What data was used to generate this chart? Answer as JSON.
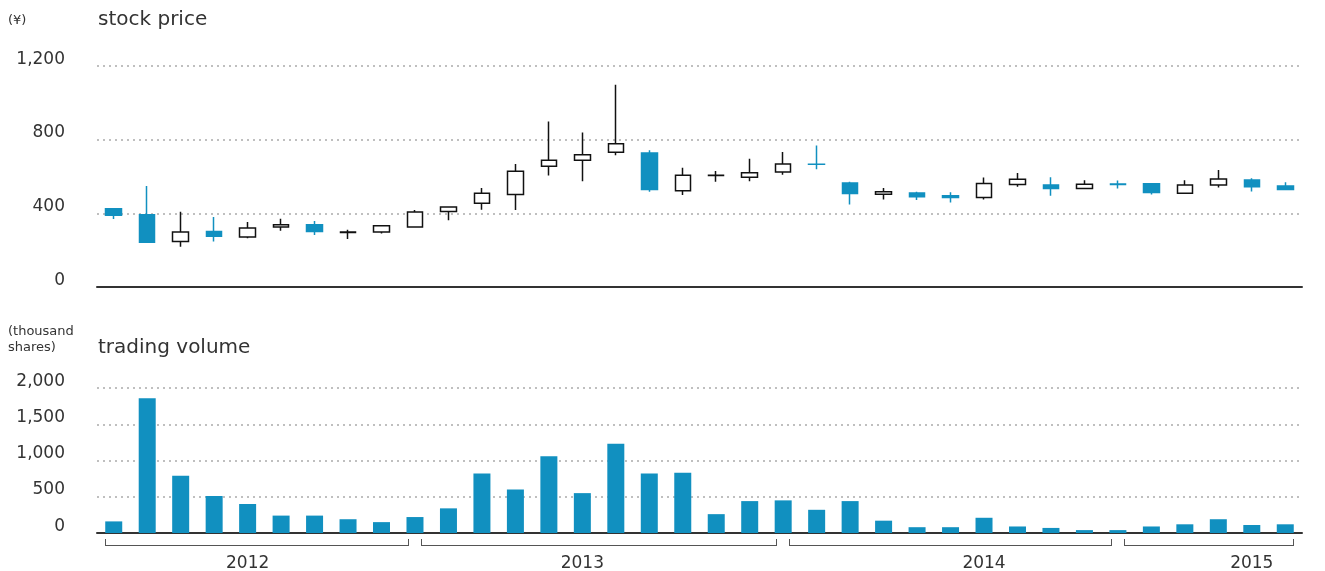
{
  "chart_data": [
    {
      "type": "candlestick",
      "title": "stock price",
      "ylabel": "(¥)",
      "categories": [
        null,
        null,
        null,
        null,
        "2012",
        null,
        null,
        null,
        null,
        null,
        null,
        null,
        null,
        null,
        "2013",
        null,
        null,
        null,
        null,
        null,
        null,
        null,
        null,
        null,
        null,
        null,
        "2014",
        null,
        null,
        null,
        null,
        null,
        null,
        null,
        "2015",
        null
      ],
      "ohlc": [
        [
          425,
          425,
          369,
          389
        ],
        [
          392,
          549,
          239,
          243
        ],
        [
          247,
          409,
          218,
          299
        ],
        [
          301,
          380,
          247,
          275
        ],
        [
          272,
          353,
          265,
          320
        ],
        [
          326,
          371,
          306,
          338
        ],
        [
          338,
          358,
          283,
          302
        ],
        [
          296,
          311,
          261,
          298
        ],
        [
          299,
          333,
          290,
          333
        ],
        [
          326,
          418,
          326,
          407
        ],
        [
          410,
          434,
          362,
          434
        ],
        [
          455,
          538,
          419,
          509
        ],
        [
          502,
          668,
          418,
          628
        ],
        [
          655,
          898,
          605,
          688
        ],
        [
          688,
          839,
          574,
          718
        ],
        [
          731,
          1098,
          715,
          778
        ],
        [
          727,
          743,
          517,
          529
        ],
        [
          522,
          648,
          500,
          607
        ],
        [
          605,
          630,
          571,
          607
        ],
        [
          596,
          697,
          574,
          621
        ],
        [
          625,
          733,
          610,
          668
        ],
        [
          667,
          769,
          639,
          666
        ],
        [
          565,
          571,
          448,
          508
        ],
        [
          504,
          538,
          475,
          517
        ],
        [
          511,
          517,
          473,
          490
        ],
        [
          495,
          515,
          459,
          486
        ],
        [
          486,
          594,
          475,
          562
        ],
        [
          556,
          619,
          544,
          585
        ],
        [
          554,
          596,
          495,
          535
        ],
        [
          535,
          580,
          535,
          558
        ],
        [
          559,
          578,
          535,
          557
        ],
        [
          560,
          560,
          502,
          513
        ],
        [
          509,
          580,
          509,
          554
        ],
        [
          554,
          635,
          540,
          587
        ],
        [
          581,
          590,
          518,
          545
        ],
        [
          549,
          569,
          529,
          529
        ]
      ],
      "ylim": [
        0,
        1200
      ],
      "yticks": [
        0,
        400,
        800,
        {
          "value": 1200,
          "label": "1,200"
        }
      ],
      "grid": "y",
      "tick_labels": "y"
    },
    {
      "type": "bar",
      "title": "trading volume",
      "ylabel": "(thousand shares)",
      "color": "#1190c0",
      "categories": [
        null,
        null,
        null,
        null,
        "2012",
        null,
        null,
        null,
        null,
        null,
        null,
        null,
        null,
        null,
        "2013",
        null,
        null,
        null,
        null,
        null,
        null,
        null,
        null,
        null,
        null,
        null,
        "2014",
        null,
        null,
        null,
        null,
        null,
        null,
        null,
        "2015",
        null
      ],
      "values": [
        160,
        1860,
        790,
        510,
        400,
        240,
        240,
        190,
        150,
        220,
        340,
        820,
        600,
        1060,
        550,
        1230,
        820,
        830,
        260,
        440,
        450,
        320,
        440,
        170,
        80,
        80,
        210,
        90,
        70,
        40,
        40,
        90,
        120,
        190,
        110,
        120
      ],
      "ylim": [
        0,
        2000
      ],
      "yticks": [
        0,
        500,
        {
          "value": 1000,
          "label": "1,000"
        },
        {
          "value": 1500,
          "label": "1,500"
        },
        {
          "value": 2000,
          "label": "2,000"
        }
      ],
      "grid": "y"
    }
  ]
}
